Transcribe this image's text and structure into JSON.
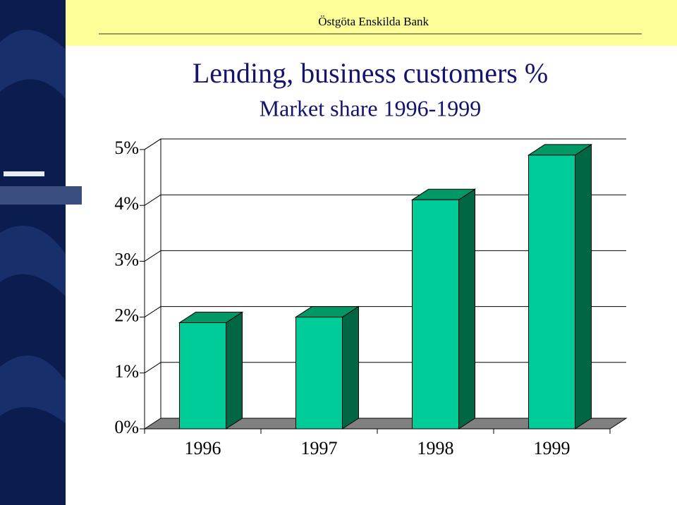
{
  "header": {
    "brand": "Östgöta Enskilda Bank"
  },
  "chart_data": {
    "type": "bar3d",
    "title": "Lending, business customers %",
    "subtitle": "Market share 1996-1999",
    "categories": [
      "1996",
      "1997",
      "1998",
      "1999"
    ],
    "values": [
      1.9,
      2.0,
      4.1,
      4.9
    ],
    "color": "#00cc99",
    "top_color": "#009966",
    "side_color": "#006644",
    "ylim": [
      0,
      5
    ],
    "yticks": [
      {
        "value": 0,
        "label": "0%"
      },
      {
        "value": 1,
        "label": "1%"
      },
      {
        "value": 2,
        "label": "2%"
      },
      {
        "value": 3,
        "label": "3%"
      },
      {
        "value": 4,
        "label": "4%"
      },
      {
        "value": 5,
        "label": "5%"
      }
    ],
    "grid": true
  }
}
